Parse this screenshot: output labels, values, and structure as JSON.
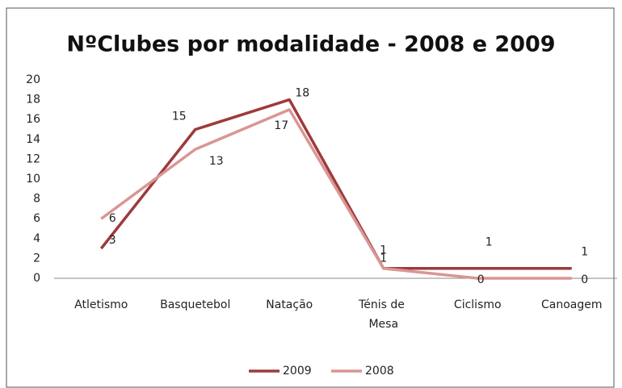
{
  "chart_data": {
    "type": "line",
    "title": "NºClubes por modalidade - 2008 e 2009",
    "categories": [
      "Atletismo",
      "Basquetebol",
      "Natação",
      "Ténis de Mesa",
      "Ciclismo",
      "Canoagem"
    ],
    "series": [
      {
        "name": "2009",
        "color": "#9e3a3b",
        "values": [
          3,
          15,
          18,
          1,
          1,
          1
        ]
      },
      {
        "name": "2008",
        "color": "#d99694",
        "values": [
          6,
          13,
          17,
          1,
          0,
          0
        ]
      }
    ],
    "ylim": [
      0,
      20
    ],
    "yticks": [
      0,
      2,
      4,
      6,
      8,
      10,
      12,
      14,
      16,
      18,
      20
    ],
    "grid": false,
    "legend": "bottom"
  }
}
